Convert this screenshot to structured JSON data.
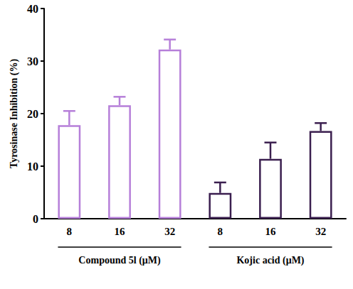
{
  "chart_data": {
    "type": "bar",
    "y_label": "Tyrosinase Inhibition (%)",
    "categories": [
      "8",
      "16",
      "32",
      "8",
      "16",
      "32"
    ],
    "series": [
      {
        "name": "Compound 5l (μM)",
        "color": "#b67fd9",
        "values": [
          17.8,
          21.6,
          32.2,
          null,
          null,
          null
        ],
        "errors": [
          2.7,
          1.6,
          1.9,
          null,
          null,
          null
        ]
      },
      {
        "name": "Kojic acid (μM)",
        "color": "#3b1f4f",
        "values": [
          null,
          null,
          null,
          4.9,
          11.4,
          16.7
        ],
        "errors": [
          null,
          null,
          null,
          2.0,
          3.1,
          1.5
        ]
      }
    ],
    "ylim": [
      0,
      40
    ],
    "yticks": [
      0,
      10,
      20,
      30,
      40
    ],
    "grid": false
  }
}
